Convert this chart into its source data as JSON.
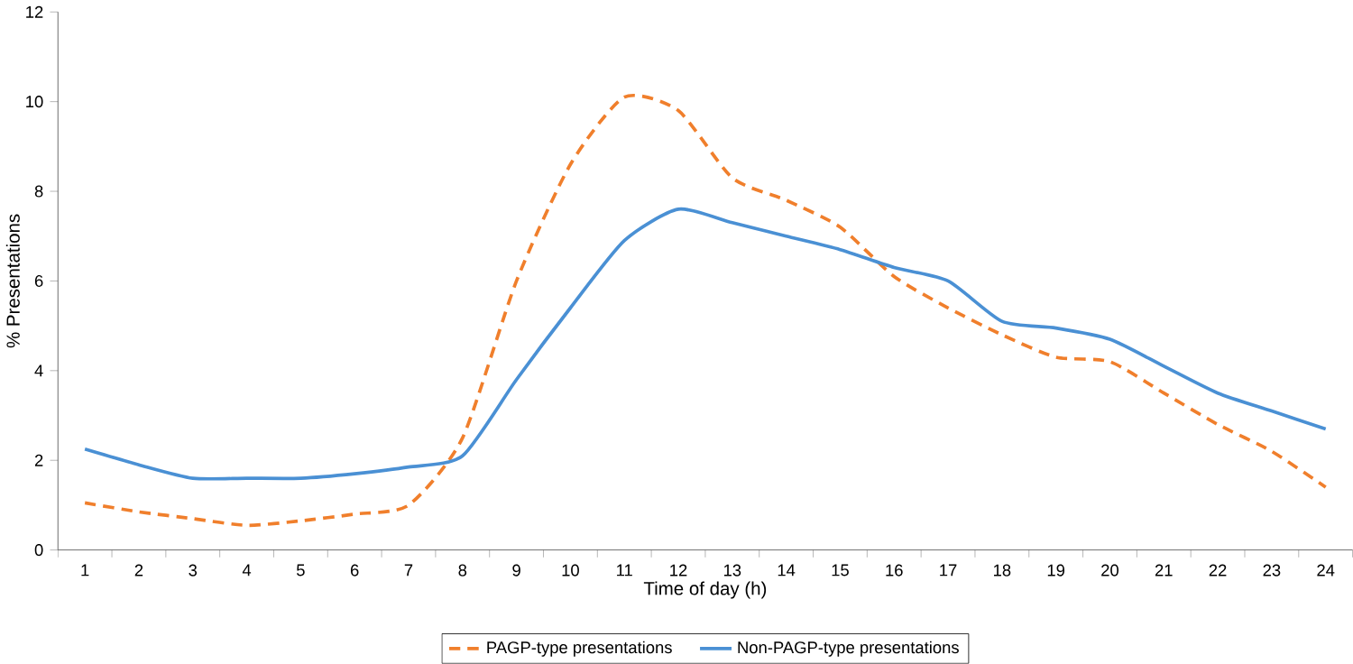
{
  "chart_data": {
    "type": "line",
    "xlabel": "Time of day (h)",
    "ylabel": "% Presentations",
    "categories": [
      "1",
      "2",
      "3",
      "4",
      "5",
      "6",
      "7",
      "8",
      "9",
      "10",
      "11",
      "12",
      "13",
      "14",
      "15",
      "16",
      "17",
      "18",
      "19",
      "20",
      "21",
      "22",
      "23",
      "24"
    ],
    "ylim": [
      0,
      12
    ],
    "yticks": [
      0,
      2,
      4,
      6,
      8,
      10,
      12
    ],
    "grid": false,
    "legend": "bottom",
    "series": [
      {
        "name": "PAGP-type presentations",
        "color": "#f07f2c",
        "line_style": "dashed",
        "values": [
          1.05,
          0.85,
          0.7,
          0.55,
          0.65,
          0.8,
          1.0,
          2.5,
          6.0,
          8.6,
          10.1,
          9.8,
          8.3,
          7.8,
          7.2,
          6.1,
          5.4,
          4.8,
          4.3,
          4.2,
          3.5,
          2.8,
          2.2,
          1.4
        ]
      },
      {
        "name": "Non-PAGP-type presentations",
        "color": "#4a90d4",
        "line_style": "solid",
        "values": [
          2.25,
          1.9,
          1.6,
          1.6,
          1.6,
          1.7,
          1.85,
          2.1,
          3.8,
          5.4,
          6.9,
          7.6,
          7.3,
          7.0,
          6.7,
          6.3,
          6.0,
          5.1,
          4.95,
          4.7,
          4.1,
          3.5,
          3.1,
          2.7
        ]
      }
    ]
  }
}
